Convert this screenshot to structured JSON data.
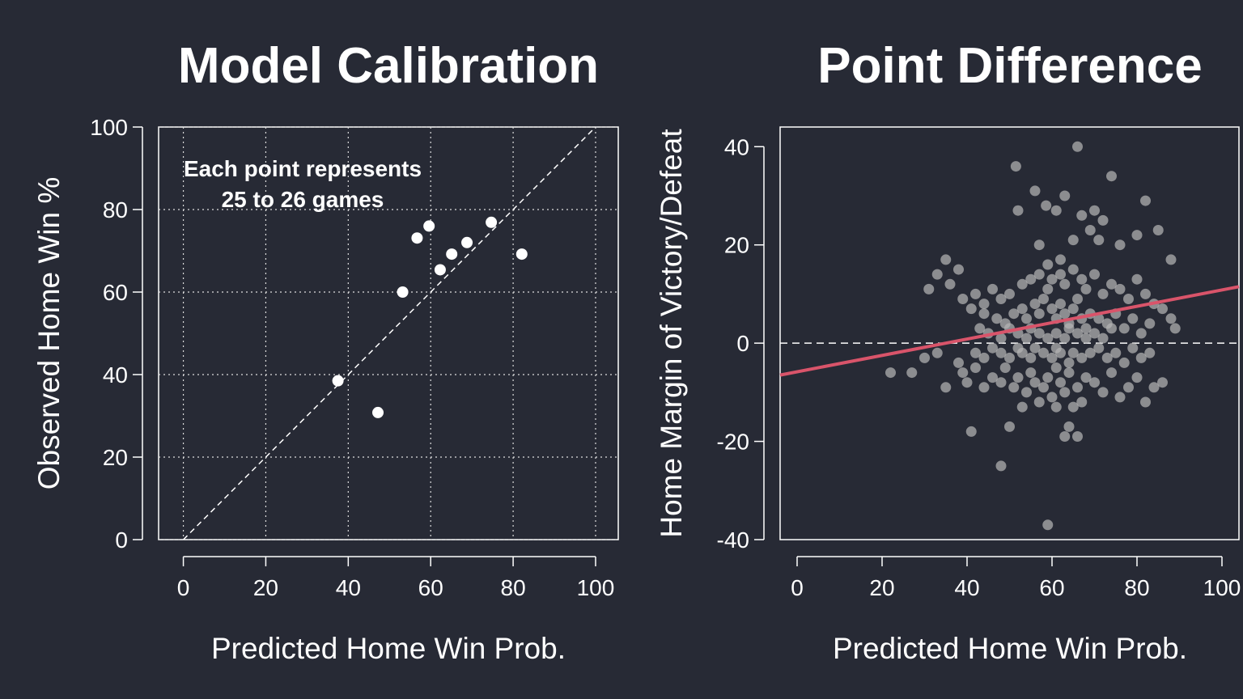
{
  "chart_data": [
    {
      "type": "scatter",
      "title": "Model Calibration",
      "xlabel": "Predicted Home Win Prob.",
      "ylabel": "Observed Home Win %",
      "xlim": [
        -6,
        105.5
      ],
      "ylim": [
        0,
        100
      ],
      "xticks": [
        0,
        20,
        40,
        60,
        80,
        100
      ],
      "yticks": [
        0,
        20,
        40,
        60,
        80,
        100
      ],
      "grid": true,
      "reference_line": "y = x (dashed)",
      "annotation_lines": [
        "Each point represents",
        "25 to 26 games"
      ],
      "point_color": "#ffffff",
      "points": [
        {
          "x": 37.5,
          "y": 38.5
        },
        {
          "x": 47.2,
          "y": 30.8
        },
        {
          "x": 53.2,
          "y": 60.0
        },
        {
          "x": 56.7,
          "y": 73.1
        },
        {
          "x": 59.6,
          "y": 76.0
        },
        {
          "x": 62.3,
          "y": 65.4
        },
        {
          "x": 65.1,
          "y": 69.2
        },
        {
          "x": 68.8,
          "y": 72.0
        },
        {
          "x": 74.7,
          "y": 76.9
        },
        {
          "x": 82.1,
          "y": 69.2
        }
      ]
    },
    {
      "type": "scatter",
      "title": "Point Difference",
      "xlabel": "Predicted Home Win Prob.",
      "ylabel": "Home Margin of Victory/Defeat",
      "xlim": [
        -4,
        104
      ],
      "ylim": [
        -40,
        44
      ],
      "xticks": [
        0,
        20,
        40,
        60,
        80,
        100
      ],
      "yticks": [
        -40,
        -20,
        0,
        20,
        40
      ],
      "grid": false,
      "zero_line": "dashed",
      "fit_line": {
        "color": "#d9546a",
        "x0": -4,
        "y0": -6.5,
        "x1": 104,
        "y1": 11.5
      },
      "point_color": "#b4b4b4",
      "points": [
        [
          51.5,
          36
        ],
        [
          58.6,
          28
        ],
        [
          61,
          27
        ],
        [
          63,
          30
        ],
        [
          66,
          40
        ],
        [
          74,
          34
        ],
        [
          82,
          29
        ],
        [
          70,
          27
        ],
        [
          72,
          25
        ],
        [
          69,
          23
        ],
        [
          76,
          20
        ],
        [
          80,
          22
        ],
        [
          85,
          23
        ],
        [
          88,
          17
        ],
        [
          65,
          21
        ],
        [
          57,
          20
        ],
        [
          59,
          16
        ],
        [
          62,
          17
        ],
        [
          52,
          27
        ],
        [
          56,
          31
        ],
        [
          67,
          26
        ],
        [
          71,
          21
        ],
        [
          35,
          17
        ],
        [
          33,
          14
        ],
        [
          38,
          15
        ],
        [
          31,
          11
        ],
        [
          36,
          12
        ],
        [
          39,
          9
        ],
        [
          42,
          10
        ],
        [
          44,
          8
        ],
        [
          46,
          11
        ],
        [
          48,
          9
        ],
        [
          50,
          10
        ],
        [
          53,
          12
        ],
        [
          55,
          13
        ],
        [
          57,
          14
        ],
        [
          59,
          11
        ],
        [
          60,
          13
        ],
        [
          62,
          14
        ],
        [
          63,
          12
        ],
        [
          65,
          15
        ],
        [
          67,
          13
        ],
        [
          68,
          11
        ],
        [
          70,
          14
        ],
        [
          72,
          10
        ],
        [
          74,
          12
        ],
        [
          76,
          11
        ],
        [
          78,
          9
        ],
        [
          80,
          13
        ],
        [
          82,
          10
        ],
        [
          84,
          8
        ],
        [
          86,
          7
        ],
        [
          88,
          5
        ],
        [
          89,
          3
        ],
        [
          41,
          7
        ],
        [
          44,
          6
        ],
        [
          47,
          5
        ],
        [
          49,
          4
        ],
        [
          51,
          6
        ],
        [
          53,
          7
        ],
        [
          54,
          5
        ],
        [
          56,
          8
        ],
        [
          57,
          6
        ],
        [
          58,
          9
        ],
        [
          60,
          7
        ],
        [
          61,
          5
        ],
        [
          62,
          8
        ],
        [
          63,
          6
        ],
        [
          64,
          4
        ],
        [
          65,
          7
        ],
        [
          66,
          9
        ],
        [
          67,
          5
        ],
        [
          68,
          3
        ],
        [
          69,
          6
        ],
        [
          71,
          5
        ],
        [
          73,
          4
        ],
        [
          75,
          6
        ],
        [
          77,
          3
        ],
        [
          79,
          5
        ],
        [
          81,
          2
        ],
        [
          83,
          4
        ],
        [
          43,
          3
        ],
        [
          45,
          2
        ],
        [
          48,
          1
        ],
        [
          50,
          3
        ],
        [
          52,
          2
        ],
        [
          54,
          1
        ],
        [
          55,
          3
        ],
        [
          57,
          2
        ],
        [
          59,
          1
        ],
        [
          61,
          2
        ],
        [
          63,
          1
        ],
        [
          64,
          3
        ],
        [
          66,
          2
        ],
        [
          68,
          1
        ],
        [
          70,
          2
        ],
        [
          72,
          1
        ],
        [
          74,
          3
        ],
        [
          42,
          -2
        ],
        [
          44,
          -3
        ],
        [
          46,
          -1
        ],
        [
          48,
          -2
        ],
        [
          50,
          -3
        ],
        [
          52,
          -1
        ],
        [
          53,
          -2
        ],
        [
          55,
          -3
        ],
        [
          56,
          -1
        ],
        [
          58,
          -2
        ],
        [
          60,
          -3
        ],
        [
          61,
          -1
        ],
        [
          62,
          -2
        ],
        [
          64,
          -4
        ],
        [
          65,
          -2
        ],
        [
          67,
          -3
        ],
        [
          69,
          -2
        ],
        [
          71,
          -1
        ],
        [
          73,
          -3
        ],
        [
          75,
          -2
        ],
        [
          77,
          -4
        ],
        [
          79,
          -1
        ],
        [
          81,
          -3
        ],
        [
          83,
          -2
        ],
        [
          22,
          -6
        ],
        [
          27,
          -6
        ],
        [
          30,
          -3
        ],
        [
          33,
          -2
        ],
        [
          35,
          -9
        ],
        [
          38,
          -4
        ],
        [
          39,
          -6
        ],
        [
          40,
          -8
        ],
        [
          42,
          -5
        ],
        [
          44,
          -9
        ],
        [
          46,
          -7
        ],
        [
          48,
          -8
        ],
        [
          49,
          -5
        ],
        [
          51,
          -9
        ],
        [
          52,
          -7
        ],
        [
          54,
          -10
        ],
        [
          55,
          -6
        ],
        [
          56,
          -8
        ],
        [
          58,
          -9
        ],
        [
          59,
          -7
        ],
        [
          60,
          -11
        ],
        [
          61,
          -5
        ],
        [
          62,
          -8
        ],
        [
          63,
          -10
        ],
        [
          64,
          -6
        ],
        [
          66,
          -9
        ],
        [
          67,
          -12
        ],
        [
          68,
          -7
        ],
        [
          70,
          -8
        ],
        [
          72,
          -10
        ],
        [
          74,
          -6
        ],
        [
          76,
          -11
        ],
        [
          78,
          -9
        ],
        [
          80,
          -7
        ],
        [
          82,
          -12
        ],
        [
          84,
          -9
        ],
        [
          86,
          -8
        ],
        [
          50,
          -17
        ],
        [
          41,
          -18
        ],
        [
          48,
          -25
        ],
        [
          59,
          -37
        ],
        [
          63,
          -19
        ],
        [
          66,
          -19
        ],
        [
          64,
          -17
        ],
        [
          53,
          -13
        ],
        [
          57,
          -12
        ],
        [
          61,
          -13
        ],
        [
          65,
          -13
        ]
      ]
    }
  ]
}
